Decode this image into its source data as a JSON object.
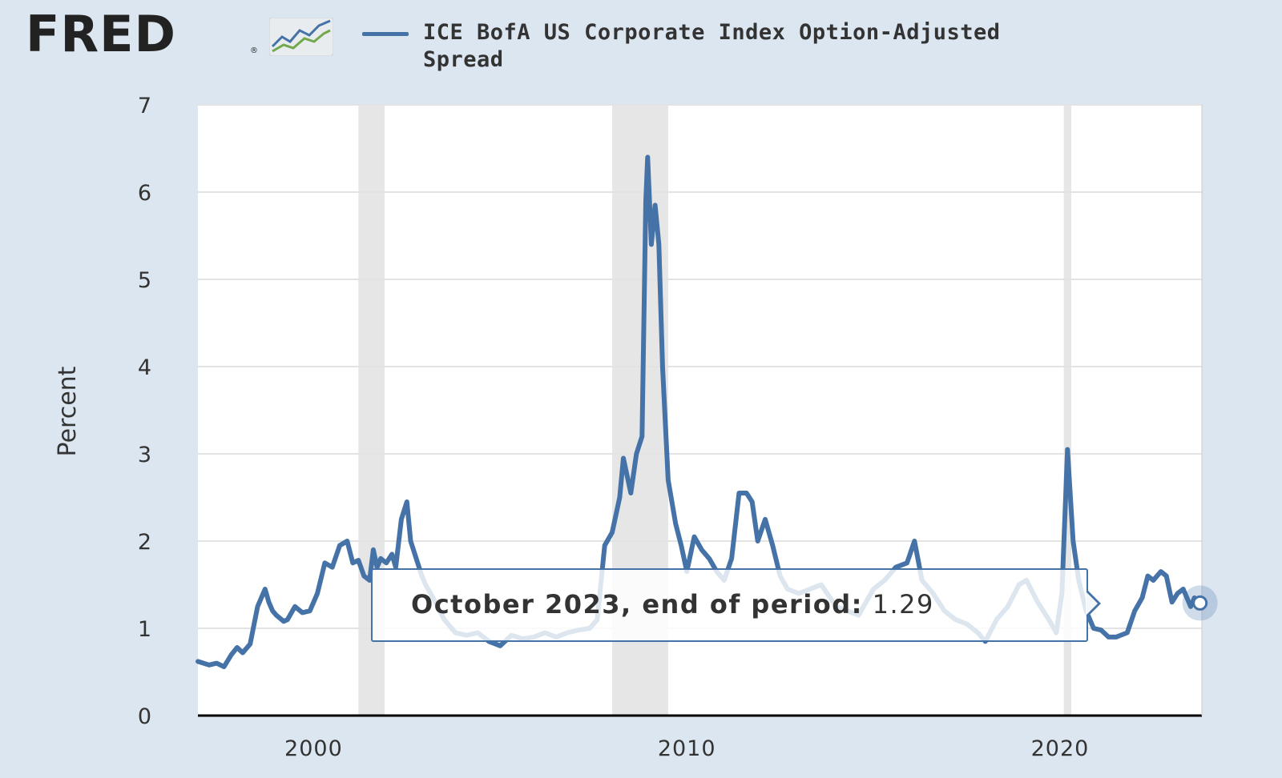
{
  "header": {
    "logo_text": "FRED",
    "logo_reg": "®",
    "series_title_line1": "ICE BofA US Corporate Index Option-Adjusted",
    "series_title_line2": "Spread"
  },
  "tooltip": {
    "label": "October 2023, end of period:",
    "value": "1.29"
  },
  "colors": {
    "line": "#4572a7",
    "background": "#dce6f0",
    "plot": "#ffffff",
    "recession": "#e6e6e6"
  },
  "chart_data": {
    "type": "line",
    "title": "ICE BofA US Corporate Index Option-Adjusted Spread",
    "xlabel": "",
    "ylabel": "Percent",
    "xlim": [
      1996.9,
      2023.8
    ],
    "ylim": [
      0,
      7
    ],
    "yticks": [
      0,
      1,
      2,
      3,
      4,
      5,
      6,
      7
    ],
    "xticks": [
      2000,
      2010,
      2020
    ],
    "grid": true,
    "legend": "top",
    "recessions": [
      [
        2001.2,
        2001.9
      ],
      [
        2008.0,
        2009.5
      ],
      [
        2020.1,
        2020.3
      ]
    ],
    "series": [
      {
        "name": "ICE BofA US Corporate Index Option-Adjusted Spread",
        "x": [
          1996.9,
          1997.2,
          1997.4,
          1997.6,
          1997.8,
          1997.95,
          1998.1,
          1998.3,
          1998.5,
          1998.7,
          1998.8,
          1998.9,
          1999.0,
          1999.2,
          1999.3,
          1999.5,
          1999.7,
          1999.9,
          2000.1,
          2000.3,
          2000.5,
          2000.7,
          2000.9,
          2001.05,
          2001.2,
          2001.35,
          2001.5,
          2001.6,
          2001.7,
          2001.8,
          2001.95,
          2002.1,
          2002.2,
          2002.35,
          2002.5,
          2002.6,
          2002.75,
          2002.9,
          2003.0,
          2003.2,
          2003.5,
          2003.8,
          2004.1,
          2004.4,
          2004.7,
          2005.0,
          2005.3,
          2005.6,
          2005.9,
          2006.2,
          2006.5,
          2006.8,
          2007.1,
          2007.4,
          2007.6,
          2007.8,
          2008.0,
          2008.2,
          2008.3,
          2008.5,
          2008.65,
          2008.8,
          2008.9,
          2008.95,
          2009.05,
          2009.15,
          2009.25,
          2009.35,
          2009.5,
          2009.7,
          2009.85,
          2010.0,
          2010.2,
          2010.4,
          2010.6,
          2010.8,
          2011.0,
          2011.2,
          2011.4,
          2011.6,
          2011.75,
          2011.9,
          2012.1,
          2012.3,
          2012.5,
          2012.7,
          2013.0,
          2013.3,
          2013.6,
          2014.0,
          2014.3,
          2014.6,
          2015.0,
          2015.3,
          2015.6,
          2015.9,
          2016.1,
          2016.3,
          2016.6,
          2016.9,
          2017.2,
          2017.5,
          2017.8,
          2018.0,
          2018.3,
          2018.6,
          2018.9,
          2019.1,
          2019.4,
          2019.7,
          2019.9,
          2020.05,
          2020.2,
          2020.35,
          2020.5,
          2020.7,
          2020.9,
          2021.1,
          2021.3,
          2021.5,
          2021.8,
          2022.0,
          2022.2,
          2022.35,
          2022.5,
          2022.7,
          2022.85,
          2023.0,
          2023.15,
          2023.3,
          2023.5,
          2023.6,
          2023.75
        ],
        "y": [
          0.62,
          0.58,
          0.6,
          0.56,
          0.7,
          0.78,
          0.72,
          0.82,
          1.25,
          1.45,
          1.3,
          1.2,
          1.15,
          1.08,
          1.1,
          1.25,
          1.18,
          1.2,
          1.4,
          1.75,
          1.7,
          1.95,
          2.0,
          1.75,
          1.78,
          1.6,
          1.55,
          1.9,
          1.7,
          1.8,
          1.75,
          1.85,
          1.7,
          2.25,
          2.45,
          2.0,
          1.8,
          1.6,
          1.5,
          1.35,
          1.1,
          0.95,
          0.92,
          0.95,
          0.85,
          0.8,
          0.92,
          0.88,
          0.9,
          0.95,
          0.9,
          0.95,
          0.98,
          1.0,
          1.1,
          1.95,
          2.1,
          2.5,
          2.95,
          2.55,
          3.0,
          3.2,
          5.9,
          6.4,
          5.4,
          5.85,
          5.4,
          4.0,
          2.7,
          2.2,
          1.95,
          1.65,
          2.05,
          1.9,
          1.8,
          1.65,
          1.55,
          1.8,
          2.55,
          2.55,
          2.45,
          2.0,
          2.25,
          1.95,
          1.6,
          1.45,
          1.4,
          1.45,
          1.5,
          1.25,
          1.2,
          1.15,
          1.45,
          1.55,
          1.7,
          1.75,
          2.0,
          1.55,
          1.4,
          1.2,
          1.1,
          1.05,
          0.95,
          0.85,
          1.1,
          1.25,
          1.5,
          1.55,
          1.3,
          1.1,
          0.95,
          1.4,
          3.05,
          2.0,
          1.55,
          1.2,
          1.0,
          0.98,
          0.9,
          0.9,
          0.95,
          1.2,
          1.35,
          1.6,
          1.55,
          1.65,
          1.6,
          1.3,
          1.4,
          1.45,
          1.25,
          1.35,
          1.29
        ]
      }
    ]
  }
}
